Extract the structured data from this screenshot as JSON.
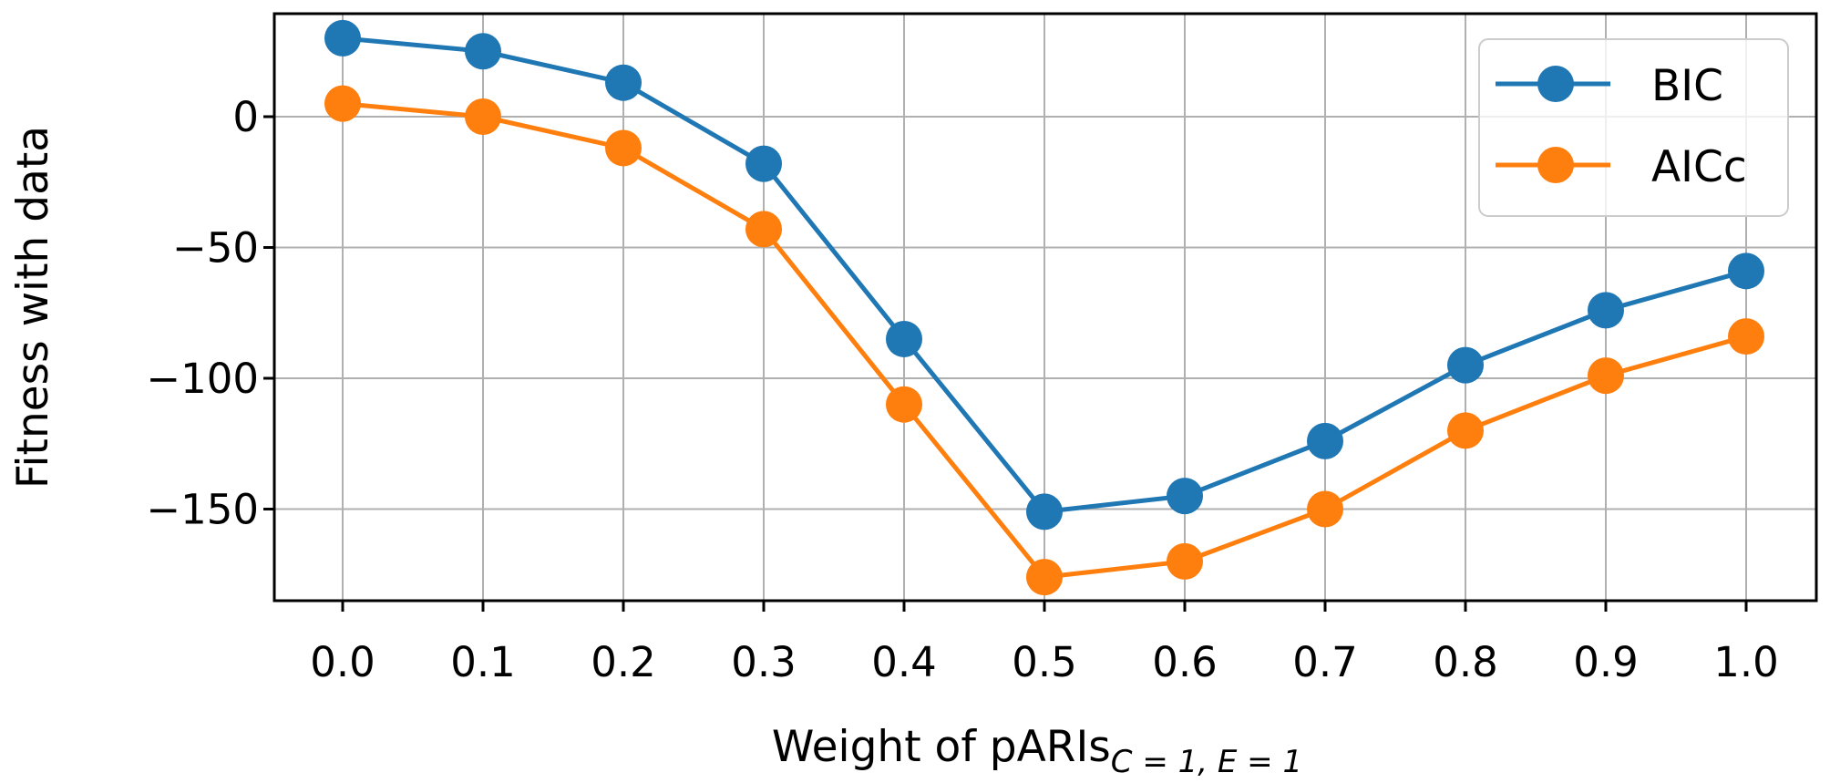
{
  "chart_data": {
    "type": "line",
    "title": "",
    "xlabel": "Weight of pARIs",
    "xlabel_subscript": "C = 1, E = 1",
    "ylabel": "Fitness with data",
    "x": [
      0.0,
      0.1,
      0.2,
      0.3,
      0.4,
      0.5,
      0.6,
      0.7,
      0.8,
      0.9,
      1.0
    ],
    "x_tick_labels": [
      "0.0",
      "0.1",
      "0.2",
      "0.3",
      "0.4",
      "0.5",
      "0.6",
      "0.7",
      "0.8",
      "0.9",
      "1.0"
    ],
    "y_ticks": [
      0,
      -50,
      -100,
      -150
    ],
    "y_tick_labels": [
      "0",
      "−50",
      "−100",
      "−150"
    ],
    "xlim": [
      -0.05,
      1.05
    ],
    "ylim": [
      -185,
      38
    ],
    "grid": true,
    "legend_position": "upper right",
    "series": [
      {
        "name": "BIC",
        "color": "#1f77b4",
        "marker": "circle",
        "values": [
          30,
          25,
          13,
          -18,
          -85,
          -151,
          -145,
          -124,
          -95,
          -74,
          -59
        ]
      },
      {
        "name": "AICc",
        "color": "#ff7f0e",
        "marker": "circle",
        "values": [
          5,
          0,
          -12,
          -43,
          -110,
          -176,
          -170,
          -150,
          -120,
          -99,
          -84
        ]
      }
    ]
  },
  "legend": {
    "items": [
      "BIC",
      "AICc"
    ]
  }
}
